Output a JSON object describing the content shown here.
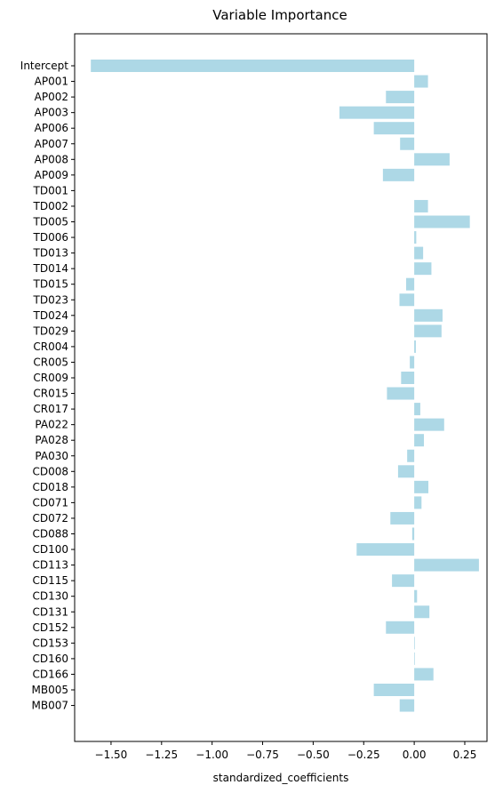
{
  "chart_data": {
    "type": "bar",
    "orientation": "horizontal",
    "title": "Variable Importance",
    "xlabel": "standardized_coefficients",
    "ylabel": "",
    "xlim": [
      -1.68,
      0.36
    ],
    "xticks": [
      -1.5,
      -1.25,
      -1.0,
      -0.75,
      -0.5,
      -0.25,
      0.0,
      0.25
    ],
    "xtick_labels": [
      "−1.50",
      "−1.25",
      "−1.00",
      "−0.75",
      "−0.50",
      "−0.25",
      "0.00",
      "0.25"
    ],
    "bar_color": "#add8e6",
    "grid": false,
    "categories": [
      "Intercept",
      "AP001",
      "AP002",
      "AP003",
      "AP006",
      "AP007",
      "AP008",
      "AP009",
      "TD001",
      "TD002",
      "TD005",
      "TD006",
      "TD013",
      "TD014",
      "TD015",
      "TD023",
      "TD024",
      "TD029",
      "CR004",
      "CR005",
      "CR009",
      "CR015",
      "CR017",
      "PA022",
      "PA028",
      "PA030",
      "CD008",
      "CD018",
      "CD071",
      "CD072",
      "CD088",
      "CD100",
      "CD113",
      "CD115",
      "CD130",
      "CD131",
      "CD152",
      "CD153",
      "CD160",
      "CD166",
      "MB005",
      "MB007"
    ],
    "values": [
      -1.6,
      0.068,
      -0.14,
      -0.37,
      -0.2,
      -0.07,
      0.175,
      -0.155,
      0.0,
      0.068,
      0.275,
      0.01,
      0.044,
      0.085,
      -0.04,
      -0.073,
      0.14,
      0.135,
      0.008,
      -0.022,
      -0.065,
      -0.135,
      0.03,
      0.148,
      0.048,
      -0.035,
      -0.08,
      0.07,
      0.036,
      -0.118,
      -0.01,
      -0.285,
      0.32,
      -0.11,
      0.014,
      0.075,
      -0.14,
      0.003,
      0.003,
      0.095,
      -0.2,
      -0.072
    ]
  }
}
